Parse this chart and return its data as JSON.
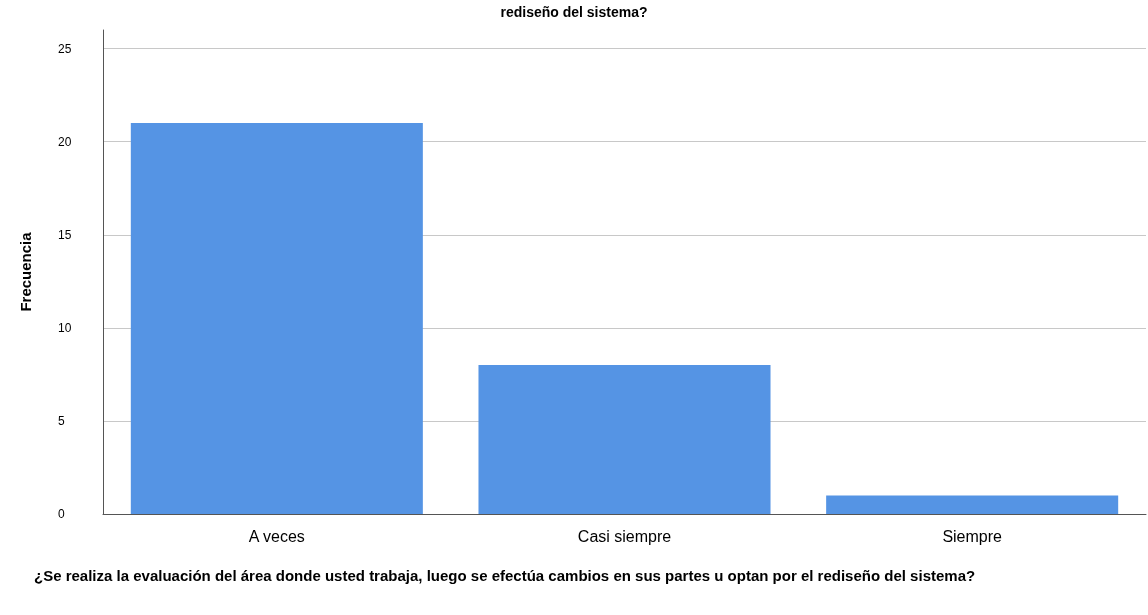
{
  "chart_data": {
    "type": "bar",
    "title": "rediseño del sistema?",
    "xlabel": "¿Se realiza la evaluación del área donde usted trabaja, luego se efectúa cambios en sus partes u optan por el rediseño del sistema?",
    "ylabel": "Frecuencia",
    "categories": [
      "A veces",
      "Casi siempre",
      "Siempre"
    ],
    "values": [
      21,
      8,
      1
    ],
    "color": "#5594e4",
    "ylim": [
      0,
      26
    ],
    "yticks": [
      0,
      5,
      10,
      15,
      20,
      25
    ],
    "grid": "y"
  }
}
